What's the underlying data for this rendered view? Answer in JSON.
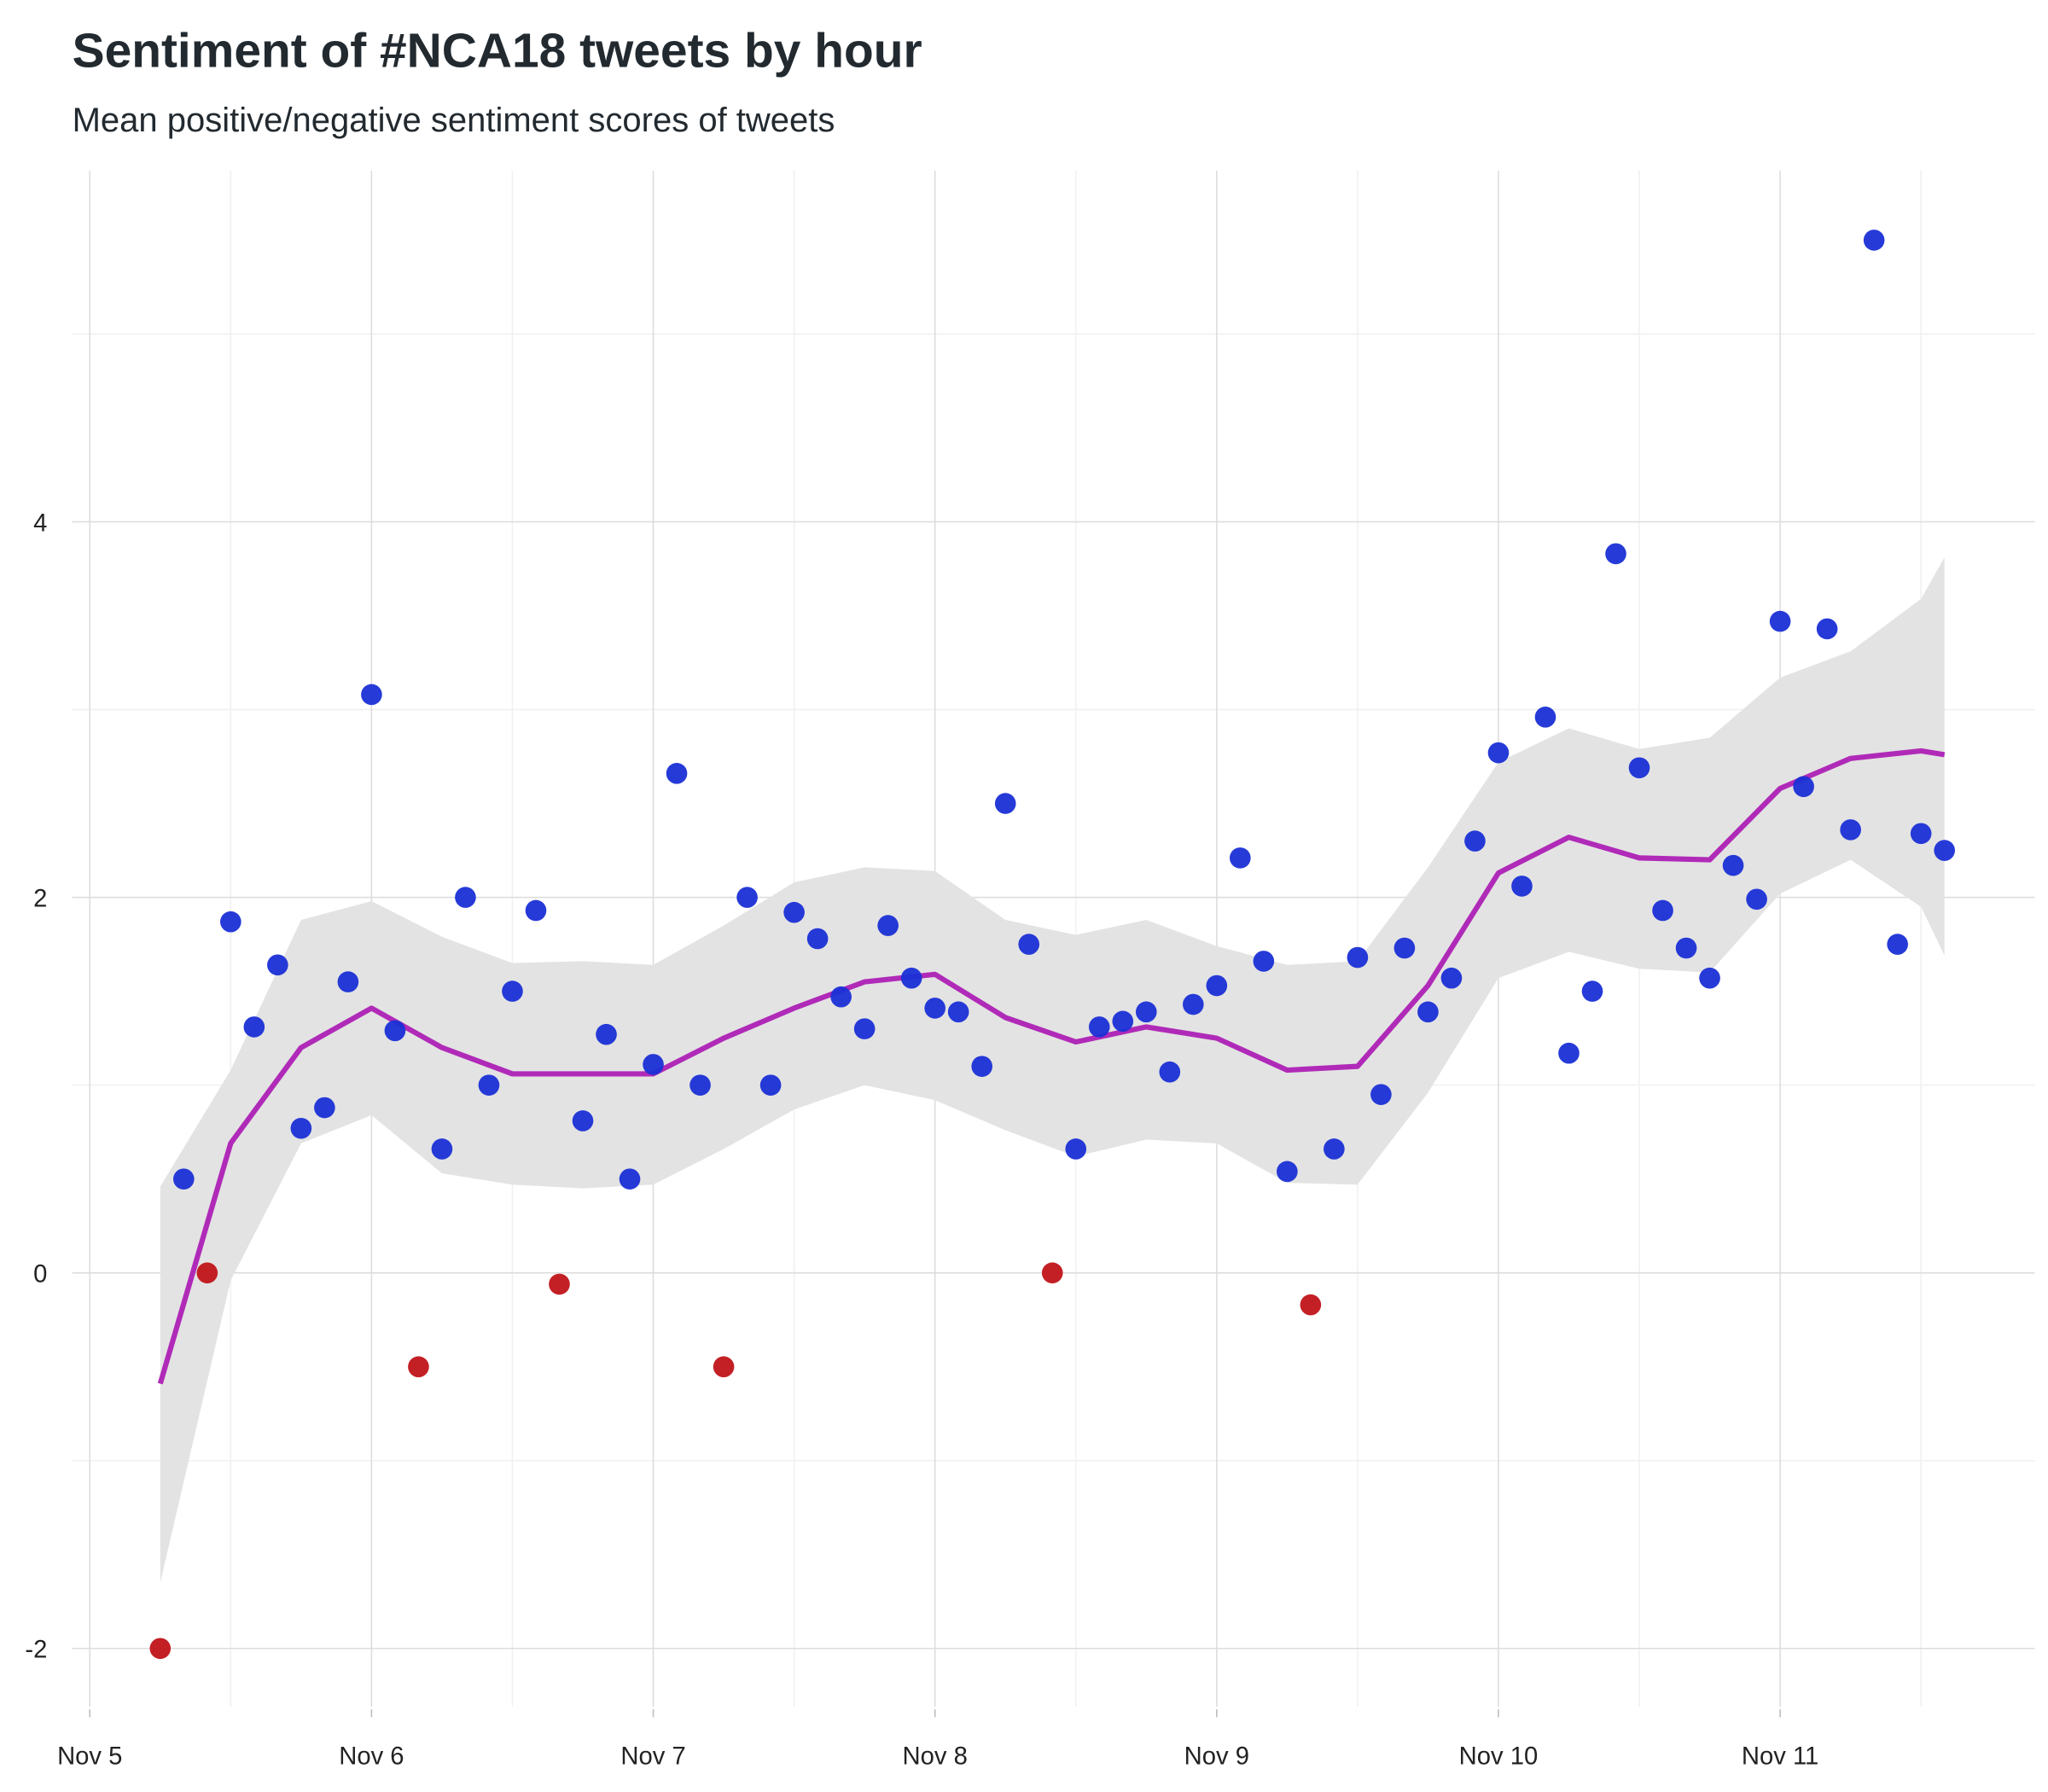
{
  "chart_data": {
    "type": "scatter",
    "title": "Sentiment of #NCA18 tweets by hour",
    "subtitle": "Mean positive/negative sentiment scores of tweets",
    "x": [
      6,
      8,
      10,
      12,
      14,
      16,
      18,
      20,
      22,
      24,
      26,
      28,
      30,
      32,
      34,
      36,
      38,
      40,
      42,
      44,
      46,
      48,
      50,
      52,
      54,
      56,
      58,
      60,
      62,
      64,
      66,
      68,
      70,
      72,
      74,
      76,
      78,
      80,
      82,
      84,
      86,
      88,
      90,
      92,
      94,
      96,
      98,
      100,
      102,
      104,
      106,
      108,
      110,
      112,
      114,
      116,
      118,
      120,
      122,
      124,
      126,
      128,
      130,
      132,
      134,
      136,
      138,
      140,
      142,
      144,
      146,
      148,
      150,
      152,
      154,
      156,
      158
    ],
    "values": [
      -2.0,
      0.5,
      0,
      1.87,
      1.31,
      1.64,
      0.77,
      0.88,
      1.55,
      3.08,
      1.29,
      -0.5,
      0.66,
      2.0,
      1.0,
      1.5,
      1.93,
      -0.06,
      0.81,
      1.27,
      0.5,
      1.11,
      2.66,
      1.0,
      -0.5,
      2.0,
      1.0,
      1.92,
      1.78,
      1.47,
      1.3,
      1.85,
      1.57,
      1.41,
      1.39,
      1.1,
      2.5,
      1.75,
      0,
      0.66,
      1.31,
      1.34,
      1.39,
      1.07,
      1.43,
      1.53,
      2.21,
      1.66,
      0.54,
      -0.17,
      0.66,
      1.68,
      0.95,
      1.73,
      1.39,
      1.57,
      2.3,
      2.77,
      2.06,
      2.96,
      1.17,
      1.5,
      3.83,
      2.69,
      1.93,
      1.73,
      1.57,
      2.17,
      1.99,
      3.47,
      2.59,
      3.43,
      2.36,
      5.5,
      1.75,
      2.34,
      2.25
    ],
    "point_colors": [
      "#c0141a",
      "#1a2fd6",
      "#c0141a",
      "#1a2fd6",
      "#1a2fd6",
      "#1a2fd6",
      "#1a2fd6",
      "#1a2fd6",
      "#1a2fd6",
      "#1a2fd6",
      "#1a2fd6",
      "#c0141a",
      "#1a2fd6",
      "#1a2fd6",
      "#1a2fd6",
      "#1a2fd6",
      "#1a2fd6",
      "#c0141a",
      "#1a2fd6",
      "#1a2fd6",
      "#1a2fd6",
      "#1a2fd6",
      "#1a2fd6",
      "#1a2fd6",
      "#c0141a",
      "#1a2fd6",
      "#1a2fd6",
      "#1a2fd6",
      "#1a2fd6",
      "#1a2fd6",
      "#1a2fd6",
      "#1a2fd6",
      "#1a2fd6",
      "#1a2fd6",
      "#1a2fd6",
      "#1a2fd6",
      "#1a2fd6",
      "#1a2fd6",
      "#c0141a",
      "#1a2fd6",
      "#1a2fd6",
      "#1a2fd6",
      "#1a2fd6",
      "#1a2fd6",
      "#1a2fd6",
      "#1a2fd6",
      "#1a2fd6",
      "#1a2fd6",
      "#1a2fd6",
      "#c0141a",
      "#1a2fd6",
      "#1a2fd6",
      "#1a2fd6",
      "#1a2fd6",
      "#1a2fd6",
      "#1a2fd6",
      "#1a2fd6",
      "#1a2fd6",
      "#1a2fd6",
      "#1a2fd6",
      "#1a2fd6",
      "#1a2fd6",
      "#1a2fd6",
      "#1a2fd6",
      "#1a2fd6",
      "#1a2fd6",
      "#1a2fd6",
      "#1a2fd6",
      "#1a2fd6",
      "#1a2fd6",
      "#1a2fd6",
      "#1a2fd6",
      "#1a2fd6",
      "#1a2fd6",
      "#1a2fd6",
      "#1a2fd6",
      "#1a2fd6"
    ],
    "smooth": {
      "color": "#b02ab8",
      "band_color": "#e3e3e3",
      "x": [
        6,
        12,
        18,
        24,
        30,
        36,
        42,
        48,
        54,
        60,
        66,
        72,
        78,
        84,
        90,
        96,
        102,
        108,
        114,
        120,
        126,
        132,
        138,
        144,
        150,
        156,
        158
      ],
      "values": [
        -0.59,
        0.69,
        1.2,
        1.41,
        1.2,
        1.06,
        1.06,
        1.06,
        1.25,
        1.41,
        1.55,
        1.59,
        1.36,
        1.23,
        1.31,
        1.25,
        1.08,
        1.1,
        1.53,
        2.13,
        2.32,
        2.21,
        2.2,
        2.58,
        2.74,
        2.78,
        2.76
      ],
      "lower": [
        -1.65,
        -0.04,
        0.69,
        0.84,
        0.53,
        0.47,
        0.45,
        0.47,
        0.66,
        0.87,
        1.0,
        0.92,
        0.76,
        0.62,
        0.71,
        0.69,
        0.48,
        0.47,
        0.96,
        1.57,
        1.71,
        1.62,
        1.6,
        2.02,
        2.2,
        1.95,
        1.69
      ],
      "upper": [
        0.46,
        1.08,
        1.88,
        1.98,
        1.79,
        1.65,
        1.66,
        1.64,
        1.85,
        2.08,
        2.16,
        2.14,
        1.88,
        1.8,
        1.88,
        1.74,
        1.64,
        1.66,
        2.16,
        2.72,
        2.9,
        2.79,
        2.85,
        3.17,
        3.31,
        3.59,
        3.81
      ]
    },
    "xlim": [
      -1.5,
      165.7
    ],
    "ylim": [
      -2.31,
      5.87
    ],
    "xticks": [
      {
        "value": 0,
        "label": "Nov 5"
      },
      {
        "value": 24,
        "label": "Nov 6"
      },
      {
        "value": 48,
        "label": "Nov 7"
      },
      {
        "value": 72,
        "label": "Nov 8"
      },
      {
        "value": 96,
        "label": "Nov 9"
      },
      {
        "value": 120,
        "label": "Nov 10"
      },
      {
        "value": 144,
        "label": "Nov 11"
      }
    ],
    "xminorticks": [
      12,
      36,
      60,
      84,
      108,
      132,
      156
    ],
    "yticks": [
      -2,
      0,
      2,
      4
    ],
    "yminorticks": [
      -1,
      1,
      3,
      5
    ],
    "grid": true
  }
}
